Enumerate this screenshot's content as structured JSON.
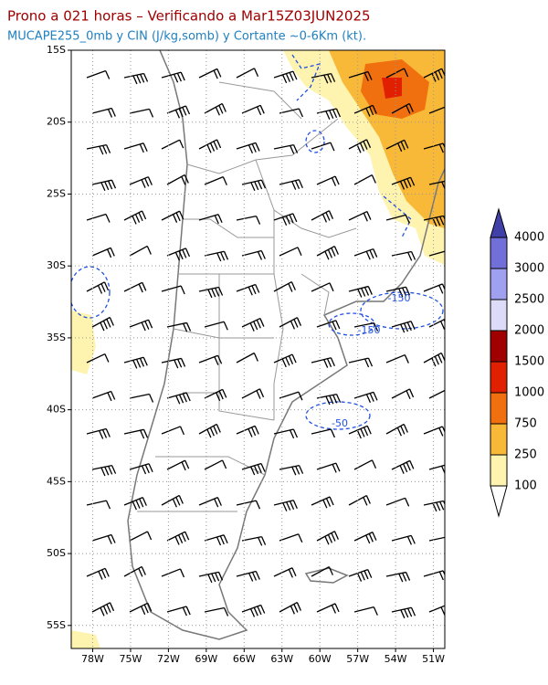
{
  "title": "Prono a 021 horas – Verificando a Mar15Z03JUN2025",
  "subtitle": "MUCAPE255_0mb y CIN (J/kg,somb) y Cortante ~0-6Km (kt).",
  "map": {
    "lon_range": [
      -79.7,
      -50.1
    ],
    "lat_range": [
      -56.6,
      -15
    ],
    "grid": true,
    "lat_ticks": [
      {
        "value": -15,
        "label": "15S"
      },
      {
        "value": -20,
        "label": "20S"
      },
      {
        "value": -25,
        "label": "25S"
      },
      {
        "value": -30,
        "label": "30S"
      },
      {
        "value": -35,
        "label": "35S"
      },
      {
        "value": -40,
        "label": "40S"
      },
      {
        "value": -45,
        "label": "45S"
      },
      {
        "value": -50,
        "label": "50S"
      },
      {
        "value": -55,
        "label": "55S"
      }
    ],
    "lon_ticks": [
      {
        "value": -78,
        "label": "78W"
      },
      {
        "value": -75,
        "label": "75W"
      },
      {
        "value": -72,
        "label": "72W"
      },
      {
        "value": -69,
        "label": "69W"
      },
      {
        "value": -66,
        "label": "66W"
      },
      {
        "value": -63,
        "label": "63W"
      },
      {
        "value": -60,
        "label": "60W"
      },
      {
        "value": -57,
        "label": "57W"
      },
      {
        "value": -54,
        "label": "54W"
      },
      {
        "value": -51,
        "label": "51W"
      }
    ],
    "contour_labels": [
      "-150",
      "-150",
      "-50"
    ]
  },
  "colorbar": {
    "levels": [
      100,
      250,
      750,
      1000,
      1500,
      2000,
      2500,
      3000,
      4000
    ],
    "colors": [
      "#ffffff",
      "#fff3b0",
      "#f8b838",
      "#f07010",
      "#e02000",
      "#a00000",
      "#dcdcf8",
      "#a0a0f0",
      "#7070d8",
      "#4040a8"
    ]
  }
}
